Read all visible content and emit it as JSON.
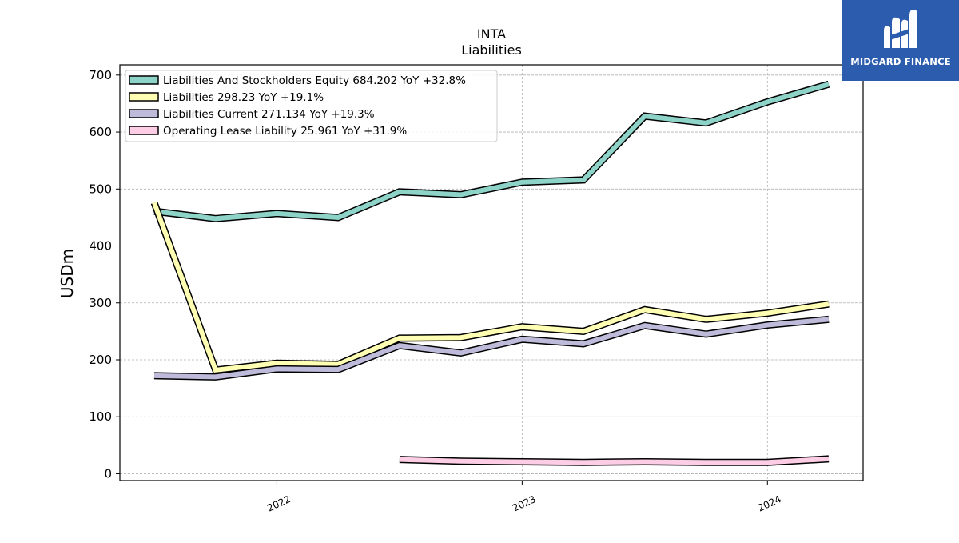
{
  "chart_data": {
    "type": "line",
    "title": "INTA",
    "subtitle": "Liabilities",
    "ylabel": "USDm",
    "xlabel": "",
    "ylim": [
      -12,
      718
    ],
    "xlim": [
      2021.36,
      2024.39
    ],
    "yticks": [
      0,
      100,
      200,
      300,
      400,
      500,
      600,
      700
    ],
    "xticks": [
      {
        "value": 2022.0,
        "label": "2022"
      },
      {
        "value": 2023.0,
        "label": "2023"
      },
      {
        "value": 2024.0,
        "label": "2024"
      }
    ],
    "grid": true,
    "legend_position": "top-left",
    "series": [
      {
        "name": "Liabilities And Stockholders Equity  684.202 YoY +32.8%",
        "color": "#8dd3c7",
        "x": [
          2021.5,
          2021.75,
          2022.0,
          2022.25,
          2022.5,
          2022.75,
          2023.0,
          2023.25,
          2023.5,
          2023.75,
          2024.0,
          2024.25
        ],
        "y": [
          461,
          448,
          457,
          450,
          495,
          490,
          512,
          516,
          628,
          616,
          653,
          684
        ]
      },
      {
        "name": "Liabilities  298.23 YoY +19.1%",
        "color": "#ffffb3",
        "x": [
          2021.5,
          2021.75,
          2022.0,
          2022.25,
          2022.5,
          2022.75,
          2023.0,
          2023.25,
          2023.5,
          2023.75,
          2024.0,
          2024.25
        ],
        "y": [
          476,
          182,
          194,
          192,
          238,
          239,
          258,
          250,
          288,
          271,
          282,
          298
        ]
      },
      {
        "name": "Liabilities Current  271.134 YoY +19.3%",
        "color": "#bebada",
        "x": [
          2021.5,
          2021.75,
          2022.0,
          2022.25,
          2022.5,
          2022.75,
          2023.0,
          2023.25,
          2023.5,
          2023.75,
          2024.0,
          2024.25
        ],
        "y": [
          172,
          170,
          184,
          183,
          225,
          212,
          236,
          228,
          260,
          245,
          261,
          271
        ]
      },
      {
        "name": "Operating Lease Liability  25.961 YoY +31.9%",
        "color": "#fccde5",
        "x": [
          2022.5,
          2022.75,
          2023.0,
          2023.25,
          2023.5,
          2023.75,
          2024.0,
          2024.25
        ],
        "y": [
          25,
          22,
          21,
          20,
          21,
          20,
          20,
          26
        ]
      }
    ]
  },
  "logo": {
    "text": "MIDGARD FINANCE",
    "background": "#2b5cad"
  }
}
